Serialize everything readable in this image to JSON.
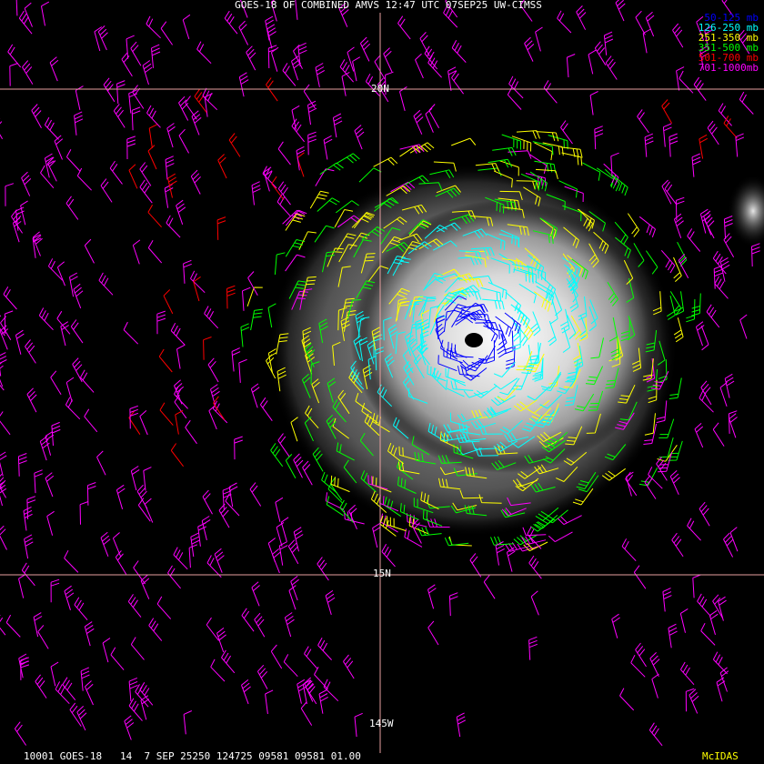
{
  "header": {
    "title": "GOES-18 OF COMBINED AMVS 12:47 UTC 07SEP25 UW-CIMSS"
  },
  "legend": [
    {
      "label": "50-125 mb",
      "color": "#0000ff"
    },
    {
      "label": "126-250 mb",
      "color": "#00ffff"
    },
    {
      "label": "251-350 mb",
      "color": "#ffff00"
    },
    {
      "label": "351-500 mb",
      "color": "#00ff00"
    },
    {
      "label": "501-700 mb",
      "color": "#ff0000"
    },
    {
      "label": "701-1000mb",
      "color": "#ff00ff"
    }
  ],
  "grid_labels": {
    "lat": [
      "20N",
      "15N"
    ],
    "lon": [
      "145W"
    ]
  },
  "footer": {
    "info": "10001 GOES-18   14  7 SEP 25250 124725 09581 09581 01.00",
    "brand": "McIDAS"
  }
}
